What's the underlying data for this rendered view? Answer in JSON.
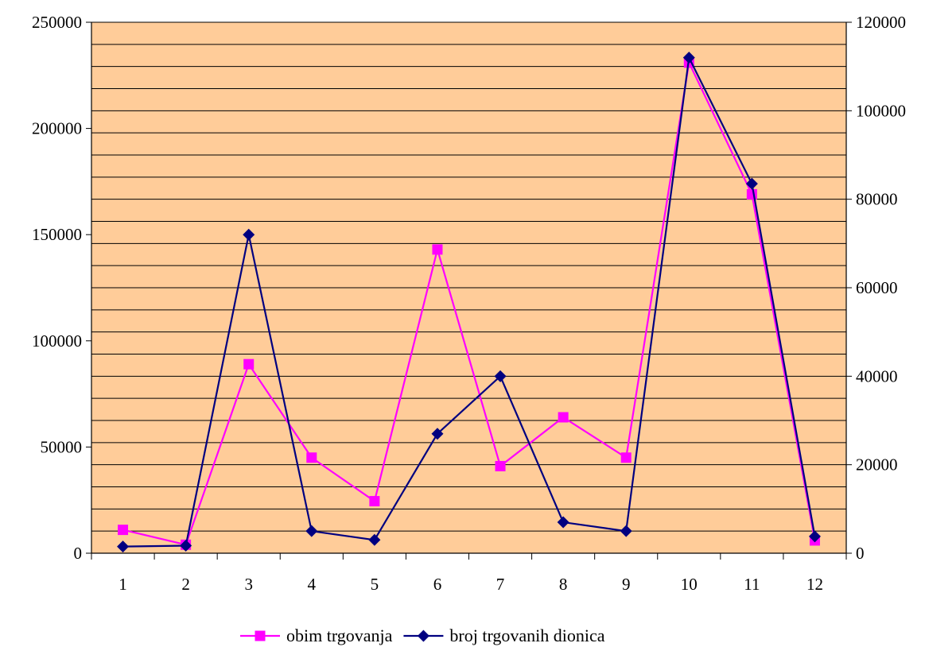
{
  "chart_data": {
    "type": "line",
    "title": "",
    "xlabel": "",
    "ylabel": "",
    "categories": [
      "1",
      "2",
      "3",
      "4",
      "5",
      "6",
      "7",
      "8",
      "9",
      "10",
      "11",
      "12"
    ],
    "y_left": {
      "ylim": [
        0,
        250000
      ],
      "ticks": [
        "0",
        "50000",
        "100000",
        "150000",
        "200000",
        "250000"
      ],
      "tick_values": [
        0,
        50000,
        100000,
        150000,
        200000,
        250000
      ]
    },
    "y_right": {
      "ylim": [
        0,
        120000
      ],
      "ticks": [
        "0",
        "20000",
        "40000",
        "60000",
        "80000",
        "100000",
        "120000"
      ],
      "tick_values": [
        0,
        20000,
        40000,
        60000,
        80000,
        100000,
        120000
      ]
    },
    "grid": true,
    "plot_background": "#FFCC99",
    "legend_position": "bottom",
    "series": [
      {
        "name": "obim trgovanja",
        "axis": "left",
        "color": "#FF00FF",
        "marker": "square",
        "values": [
          11000,
          4000,
          89000,
          45000,
          24500,
          143000,
          41000,
          64000,
          45000,
          231000,
          169000,
          6000
        ]
      },
      {
        "name": "broj trgovanih dionica",
        "axis": "right",
        "color": "#000080",
        "marker": "diamond",
        "values": [
          1500,
          1700,
          72000,
          5000,
          3000,
          27000,
          40000,
          7000,
          5000,
          112000,
          83500,
          3800
        ]
      }
    ]
  }
}
